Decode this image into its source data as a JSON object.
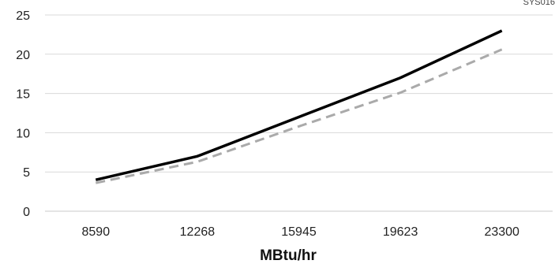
{
  "chart_data": {
    "type": "line",
    "title": "",
    "xlabel": "MBtu/hr",
    "ylabel": "",
    "categories": [
      "8590",
      "12268",
      "15945",
      "19623",
      "23300"
    ],
    "ylim": [
      0,
      25
    ],
    "yticks": [
      0,
      5,
      10,
      15,
      20,
      25
    ],
    "grid": true,
    "legend": "none",
    "series": [
      {
        "values": [
          4,
          7,
          12,
          17,
          23
        ],
        "color": "#000000",
        "style": "solid"
      },
      {
        "values": [
          3.6,
          6.3,
          10.8,
          15.1,
          20.6
        ],
        "color": "#aaaaaa",
        "style": "dashed"
      }
    ]
  },
  "corner_label": "SYS016"
}
